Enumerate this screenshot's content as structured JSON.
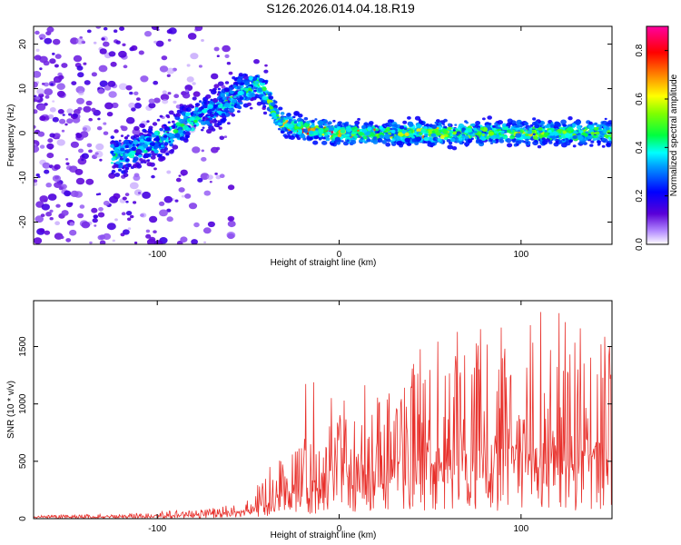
{
  "title": "S126.2026.014.04.18.R19",
  "chart_data": [
    {
      "type": "heatmap",
      "name": "spectrogram",
      "xlabel": "Height of straight line (km)",
      "ylabel": "Frequency (Hz)",
      "xlim": [
        -168,
        150
      ],
      "ylim": [
        -25,
        24
      ],
      "xticks": [
        -100,
        0,
        100
      ],
      "yticks": [
        -20,
        -10,
        0,
        10,
        20
      ],
      "colorbar": {
        "label": "Normalized spectral amplitude",
        "range": [
          0.0,
          0.9
        ],
        "ticks": [
          0.0,
          0.2,
          0.4,
          0.6,
          0.8
        ],
        "tick_labels": [
          "0.0",
          "0.2",
          "0.4",
          "0.6",
          "0.8"
        ]
      },
      "ridge": {
        "x": [
          -120,
          -100,
          -80,
          -65,
          -55,
          -45,
          -40,
          -35,
          -30,
          -20,
          0,
          50,
          100,
          150
        ],
        "frequency": [
          -5,
          -2,
          3,
          6,
          9,
          11,
          9,
          4,
          2,
          1,
          0,
          0,
          0,
          0
        ]
      }
    },
    {
      "type": "line",
      "name": "snr",
      "xlabel": "Height of straight line (km)",
      "ylabel": "SNR (10 * v/v)",
      "xlim": [
        -168,
        150
      ],
      "ylim": [
        0,
        1900
      ],
      "xticks": [
        -100,
        0,
        100
      ],
      "yticks": [
        0,
        500,
        1000,
        1500
      ],
      "color": "#e8302b",
      "envelope": {
        "x": [
          -168,
          -120,
          -90,
          -75,
          -60,
          -50,
          -40,
          -30,
          -20,
          0,
          20,
          40,
          60,
          80,
          100,
          120,
          150
        ],
        "typical": [
          15,
          20,
          30,
          40,
          60,
          90,
          150,
          300,
          350,
          450,
          550,
          600,
          650,
          680,
          700,
          720,
          700
        ],
        "peak": [
          30,
          40,
          70,
          80,
          120,
          200,
          400,
          700,
          1280,
          1080,
          1200,
          1480,
          1690,
          1670,
          1700,
          1900,
          1600
        ]
      }
    }
  ]
}
